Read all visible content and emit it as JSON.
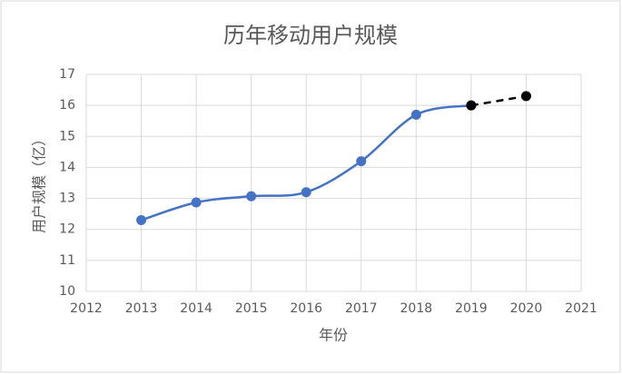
{
  "chart_data": {
    "type": "line",
    "title": "历年移动用户规模",
    "x_label": "年份",
    "y_label": "用户规模（亿）",
    "series": [
      {
        "color": "#4472c4",
        "line_style": "solid",
        "smooth": true,
        "x": [
          2013,
          2014,
          2015,
          2016,
          2017,
          2018,
          2019
        ],
        "values": [
          12.3,
          12.87,
          13.07,
          13.2,
          14.2,
          15.7,
          16.0
        ]
      },
      {
        "color": "#000000",
        "line_style": "dashed",
        "smooth": false,
        "x": [
          2019,
          2020
        ],
        "values": [
          16.0,
          16.3
        ]
      }
    ],
    "xlim": [
      2012,
      2021
    ],
    "xticks": [
      2012,
      2013,
      2014,
      2015,
      2016,
      2017,
      2018,
      2019,
      2020,
      2021
    ],
    "ylim": [
      10,
      17
    ],
    "yticks": [
      10,
      11,
      12,
      13,
      14,
      15,
      16,
      17
    ],
    "grid": true
  }
}
